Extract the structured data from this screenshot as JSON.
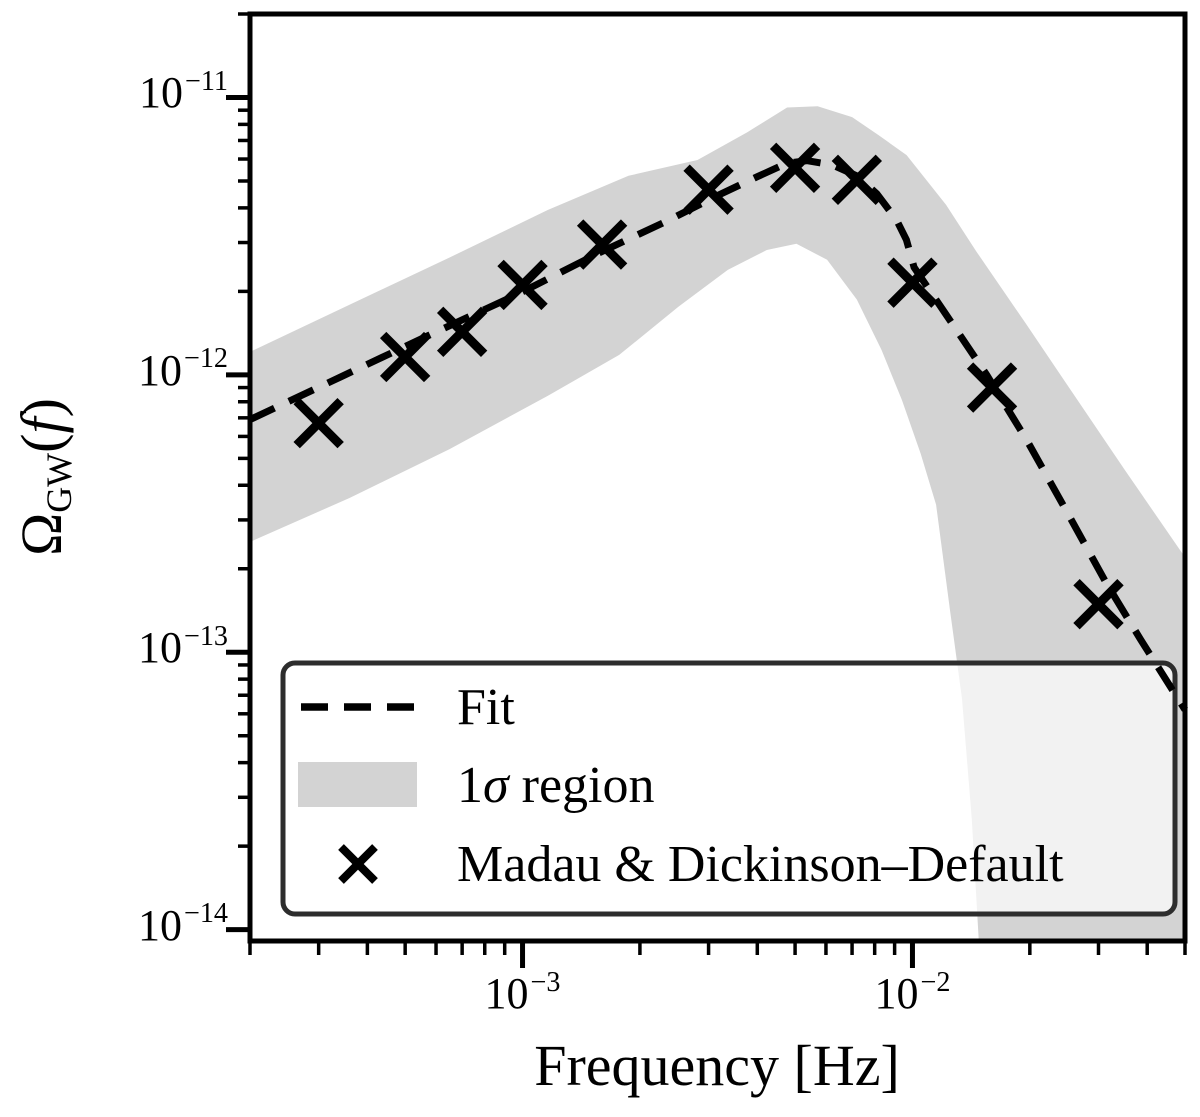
{
  "figure": {
    "xlabel": "Frequency [Hz]",
    "ylabel": {
      "omega": "Ω",
      "sub": "GW",
      "paren_open": "(",
      "f": "f",
      "paren_close": ")"
    },
    "legend": {
      "fit_label": "Fit",
      "band_label_prefix": "1",
      "band_label_sigma": "σ",
      "band_label_suffix": " region",
      "markers_label": "Madau & Dickinson–Default"
    },
    "colors": {
      "line": "#000000",
      "band": "#d3d3d3",
      "legend_border": "#2d2d2d",
      "axes": "#000000"
    }
  },
  "chart_data": {
    "type": "line",
    "title": "",
    "xlabel": "Frequency [Hz]",
    "ylabel": "Omega_GW(f)",
    "x_scale": "log",
    "y_scale": "log",
    "grid": false,
    "legend_position": "lower center, wide box",
    "xlim": [
      0.0002,
      0.05
    ],
    "ylim": [
      9.1e-15,
      2e-11
    ],
    "x_ticks": [
      {
        "value": 0.001,
        "label_base": "10",
        "label_exp": "−3"
      },
      {
        "value": 0.01,
        "label_base": "10",
        "label_exp": "−2"
      }
    ],
    "y_ticks": [
      {
        "value": 1e-11,
        "label_base": "10",
        "label_exp": "−11"
      },
      {
        "value": 1e-12,
        "label_base": "10",
        "label_exp": "−12"
      },
      {
        "value": 1e-13,
        "label_base": "10",
        "label_exp": "−13"
      },
      {
        "value": 1e-14,
        "label_base": "10",
        "label_exp": "−14"
      }
    ],
    "series": [
      {
        "name": "Fit",
        "type": "line",
        "linestyle": "dashed",
        "color": "#000000",
        "points": [
          [
            0.0002,
            6.9e-13
          ],
          [
            0.00034,
            9.8e-13
          ],
          [
            0.000576,
            1.39e-12
          ],
          [
            0.000977,
            1.96e-12
          ],
          [
            0.00156,
            2.74e-12
          ],
          [
            0.00236,
            3.6e-12
          ],
          [
            0.00316,
            4.43e-12
          ],
          [
            0.004,
            5.18e-12
          ],
          [
            0.00477,
            5.8e-12
          ],
          [
            0.00537,
            5.92e-12
          ],
          [
            0.00622,
            5.72e-12
          ],
          [
            0.0072,
            5.22e-12
          ],
          [
            0.0081,
            4.5e-12
          ],
          [
            0.0091,
            3.62e-12
          ],
          [
            0.00965,
            3.07e-12
          ],
          [
            0.0101,
            2.44e-12
          ],
          [
            0.0122,
            1.65e-12
          ],
          [
            0.0155,
            1e-12
          ],
          [
            0.0196,
            5.85e-13
          ],
          [
            0.0247,
            3.27e-13
          ],
          [
            0.0313,
            1.79e-13
          ],
          [
            0.0385,
            1.11e-13
          ],
          [
            0.05,
            6.2e-14
          ]
        ]
      },
      {
        "name": "1σ region",
        "type": "band",
        "color": "#d3d3d3",
        "upper": [
          [
            0.0002,
            1.21e-12
          ],
          [
            0.00036,
            1.79e-12
          ],
          [
            0.00065,
            2.65e-12
          ],
          [
            0.00116,
            3.93e-12
          ],
          [
            0.00187,
            5.22e-12
          ],
          [
            0.00281,
            5.95e-12
          ],
          [
            0.00377,
            7.5e-12
          ],
          [
            0.00477,
            9.2e-12
          ],
          [
            0.00571,
            9.3e-12
          ],
          [
            0.007,
            8.5e-12
          ],
          [
            0.0082,
            7.3e-12
          ],
          [
            0.00966,
            6.2e-12
          ],
          [
            0.0122,
            4.1e-12
          ],
          [
            0.0146,
            2.78e-12
          ],
          [
            0.0196,
            1.52e-12
          ],
          [
            0.0262,
            8.3e-13
          ],
          [
            0.0352,
            4.5e-13
          ],
          [
            0.05,
            2.2e-13
          ]
        ],
        "lower": [
          [
            0.0002,
            2.5e-13
          ],
          [
            0.00036,
            3.6e-13
          ],
          [
            0.00065,
            5.4e-13
          ],
          [
            0.00116,
            8.4e-13
          ],
          [
            0.00177,
            1.18e-12
          ],
          [
            0.00251,
            1.76e-12
          ],
          [
            0.00336,
            2.39e-12
          ],
          [
            0.00423,
            2.82e-12
          ],
          [
            0.00504,
            2.97e-12
          ],
          [
            0.00604,
            2.6e-12
          ],
          [
            0.0072,
            1.87e-12
          ],
          [
            0.00833,
            1.23e-12
          ],
          [
            0.0094,
            8.1e-13
          ],
          [
            0.0105,
            5.2e-13
          ],
          [
            0.0115,
            3.4e-13
          ],
          [
            0.0125,
            1.4e-13
          ],
          [
            0.0134,
            6.8e-14
          ],
          [
            0.0142,
            2.5e-14
          ],
          [
            0.0148,
            9.1e-15
          ]
        ]
      },
      {
        "name": "Madau & Dickinson–Default",
        "type": "scatter",
        "marker": "x",
        "color": "#000000",
        "points": [
          [
            0.0003,
            6.7e-13
          ],
          [
            0.0005,
            1.16e-12
          ],
          [
            0.0007,
            1.43e-12
          ],
          [
            0.001,
            2.11e-12
          ],
          [
            0.0016,
            2.95e-12
          ],
          [
            0.003,
            4.65e-12
          ],
          [
            0.005,
            5.58e-12
          ],
          [
            0.0072,
            5.05e-12
          ],
          [
            0.01,
            2.15e-12
          ],
          [
            0.016,
            9e-13
          ],
          [
            0.03,
            1.49e-13
          ]
        ]
      }
    ]
  }
}
